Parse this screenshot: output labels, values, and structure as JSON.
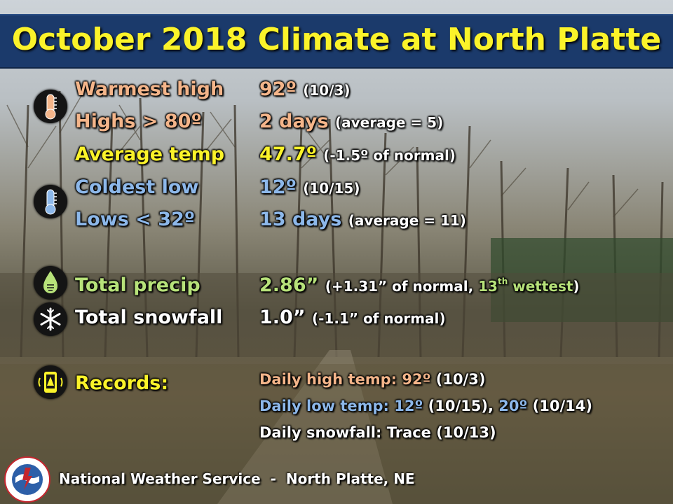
{
  "title": "October 2018 Climate at North Platte",
  "colors": {
    "warm": "#f4b58a",
    "cold": "#8db8ea",
    "avg": "#fbf32a",
    "precip": "#b7e27a",
    "records": "#fbf32a",
    "white": "#ffffff"
  },
  "rows": {
    "warmest_high": {
      "label": "Warmest high",
      "value": "92º",
      "note": "(10/3)"
    },
    "highs_over": {
      "label": "Highs > 80º",
      "value": "2 days",
      "note": "(average = 5)"
    },
    "average_temp": {
      "label": "Average temp",
      "value": "47.7º",
      "note_pre": "(-1.5º of normal)"
    },
    "coldest_low": {
      "label": "Coldest low",
      "value": "12º",
      "note": "(10/15)"
    },
    "lows_under": {
      "label": "Lows < 32º",
      "value": "13 days",
      "note": "(average = 11)"
    },
    "total_precip": {
      "label": "Total precip",
      "value": "2.86”",
      "note_a": "(+1.31” of normal, ",
      "note_b": "13",
      "note_sup": "th",
      "note_c": " wettest",
      ")": ")"
    },
    "total_snowfall": {
      "label": "Total snowfall",
      "value": "1.0”",
      "note": "(-1.1” of normal)"
    }
  },
  "records": {
    "label": "Records:",
    "high_label": "Daily high temp: 92º",
    "high_date": "(10/3)",
    "low_label": "Daily low temp: 12º",
    "low_date1": "(10/15),",
    "low_val2": "20º",
    "low_date2": "(10/14)",
    "snow_label": "Daily snowfall: Trace",
    "snow_date": "(10/13)"
  },
  "footer": "National Weather Service  -  North Platte, NE",
  "icons": [
    "thermometer-hot-icon",
    "thermometer-cold-icon",
    "water-drop-icon",
    "snowflake-icon",
    "phone-alert-icon",
    "nws-logo"
  ]
}
